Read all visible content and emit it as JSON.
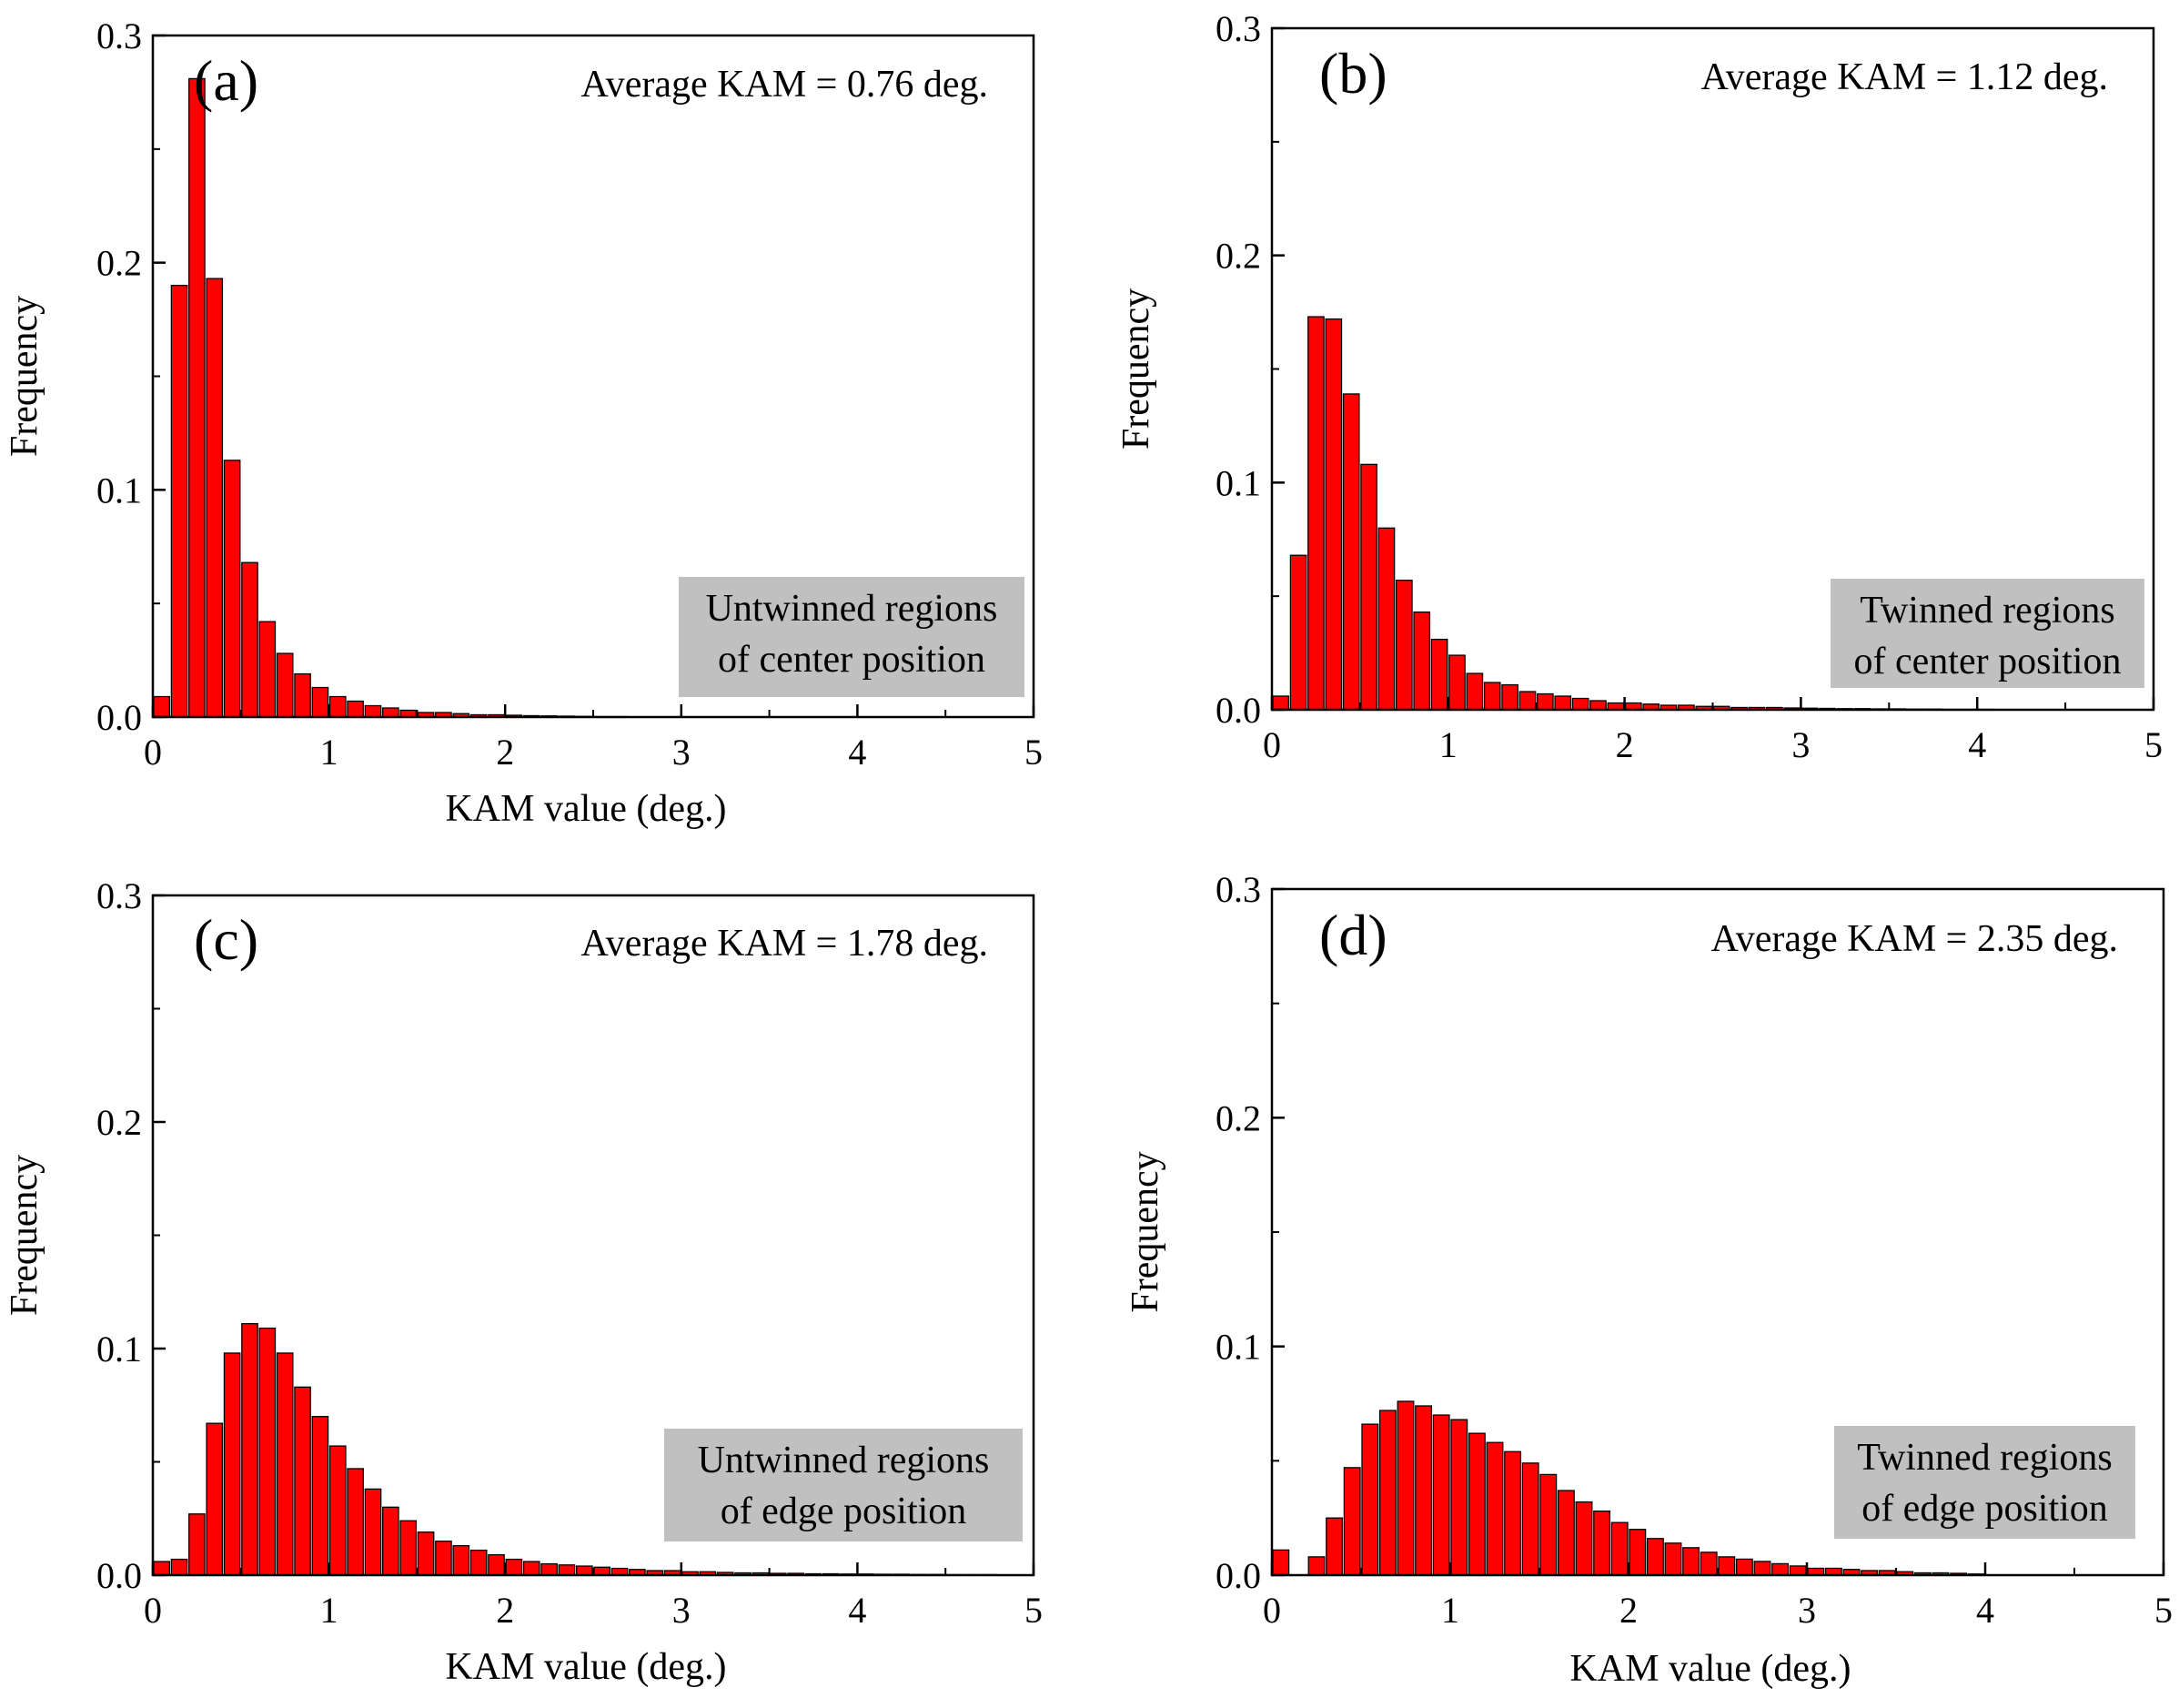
{
  "chart_data": [
    {
      "id": "a",
      "type": "bar",
      "panel_label": "(a)",
      "annotation": "Average KAM = 0.76 deg.",
      "legend_lines": [
        "Untwinned regions",
        "of center position"
      ],
      "xlabel": "KAM value (deg.)",
      "ylabel": "Frequency",
      "xlim": [
        0,
        5
      ],
      "ylim": [
        0,
        0.3
      ],
      "xticks": [
        0,
        1,
        2,
        3,
        4,
        5
      ],
      "yticks": [
        "0.0",
        "0.1",
        "0.2",
        "0.3"
      ],
      "bin_width": 0.1,
      "x": [
        0.05,
        0.15,
        0.25,
        0.35,
        0.45,
        0.55,
        0.65,
        0.75,
        0.85,
        0.95,
        1.05,
        1.15,
        1.25,
        1.35,
        1.45,
        1.55,
        1.65,
        1.75,
        1.85,
        1.95,
        2.05,
        2.15,
        2.25,
        2.35,
        2.45,
        2.55,
        2.65,
        2.75
      ],
      "values": [
        0.009,
        0.19,
        0.281,
        0.193,
        0.113,
        0.068,
        0.042,
        0.028,
        0.019,
        0.013,
        0.009,
        0.007,
        0.005,
        0.004,
        0.003,
        0.002,
        0.002,
        0.0015,
        0.001,
        0.001,
        0.0008,
        0.0006,
        0.0005,
        0.0004,
        0.0003,
        0.0002,
        0.0002,
        0.0001
      ]
    },
    {
      "id": "b",
      "type": "bar",
      "panel_label": "(b)",
      "annotation": "Average KAM = 1.12 deg.",
      "legend_lines": [
        "Twinned regions",
        "of center position"
      ],
      "xlabel": "",
      "ylabel": "Frequency",
      "xlim": [
        0,
        5
      ],
      "ylim": [
        0,
        0.3
      ],
      "xticks": [
        0,
        1,
        2,
        3,
        4,
        5
      ],
      "yticks": [
        "0.0",
        "0.1",
        "0.2",
        "0.3"
      ],
      "bin_width": 0.1,
      "x": [
        0.05,
        0.15,
        0.25,
        0.35,
        0.45,
        0.55,
        0.65,
        0.75,
        0.85,
        0.95,
        1.05,
        1.15,
        1.25,
        1.35,
        1.45,
        1.55,
        1.65,
        1.75,
        1.85,
        1.95,
        2.05,
        2.15,
        2.25,
        2.35,
        2.45,
        2.55,
        2.65,
        2.75,
        2.85,
        2.95,
        3.05,
        3.15,
        3.25,
        3.35,
        3.45,
        3.55,
        3.65,
        3.75,
        3.85,
        3.95,
        4.05,
        4.15,
        4.25
      ],
      "values": [
        0.006,
        0.068,
        0.173,
        0.172,
        0.139,
        0.108,
        0.08,
        0.057,
        0.043,
        0.031,
        0.024,
        0.016,
        0.012,
        0.011,
        0.008,
        0.007,
        0.006,
        0.005,
        0.004,
        0.003,
        0.003,
        0.0025,
        0.002,
        0.002,
        0.0015,
        0.0015,
        0.001,
        0.001,
        0.001,
        0.0008,
        0.0007,
        0.0006,
        0.0005,
        0.0005,
        0.0004,
        0.0004,
        0.0003,
        0.0003,
        0.0002,
        0.0002,
        0.0002,
        0.0001,
        0.0001
      ]
    },
    {
      "id": "c",
      "type": "bar",
      "panel_label": "(c)",
      "annotation": "Average KAM = 1.78 deg.",
      "legend_lines": [
        "Untwinned regions",
        "of edge position"
      ],
      "xlabel": "KAM value (deg.)",
      "ylabel": "Frequency",
      "xlim": [
        0,
        5
      ],
      "ylim": [
        0,
        0.3
      ],
      "xticks": [
        0,
        1,
        2,
        3,
        4,
        5
      ],
      "yticks": [
        "0.0",
        "0.1",
        "0.2",
        "0.3"
      ],
      "bin_width": 0.1,
      "x": [
        0.05,
        0.15,
        0.25,
        0.35,
        0.45,
        0.55,
        0.65,
        0.75,
        0.85,
        0.95,
        1.05,
        1.15,
        1.25,
        1.35,
        1.45,
        1.55,
        1.65,
        1.75,
        1.85,
        1.95,
        2.05,
        2.15,
        2.25,
        2.35,
        2.45,
        2.55,
        2.65,
        2.75,
        2.85,
        2.95,
        3.05,
        3.15,
        3.25,
        3.35,
        3.45,
        3.55,
        3.65,
        3.75,
        3.85,
        3.95,
        4.05,
        4.15,
        4.25,
        4.35,
        4.45,
        4.55,
        4.65,
        4.75,
        4.85,
        4.95
      ],
      "values": [
        0.006,
        0.007,
        0.027,
        0.067,
        0.098,
        0.111,
        0.109,
        0.098,
        0.083,
        0.07,
        0.057,
        0.047,
        0.038,
        0.03,
        0.024,
        0.019,
        0.015,
        0.013,
        0.011,
        0.009,
        0.007,
        0.006,
        0.005,
        0.0045,
        0.004,
        0.0035,
        0.003,
        0.0025,
        0.002,
        0.002,
        0.0015,
        0.0015,
        0.0012,
        0.001,
        0.001,
        0.0008,
        0.0008,
        0.0006,
        0.0006,
        0.0005,
        0.0005,
        0.0004,
        0.0004,
        0.0003,
        0.0003,
        0.0002,
        0.0002,
        0.0002,
        0.0001,
        0.0001
      ]
    },
    {
      "id": "d",
      "type": "bar",
      "panel_label": "(d)",
      "annotation": "Average KAM = 2.35 deg.",
      "legend_lines": [
        "Twinned regions",
        "of edge position"
      ],
      "xlabel": "KAM value (deg.)",
      "ylabel": "Frequency",
      "xlim": [
        0,
        5
      ],
      "ylim": [
        0,
        0.3
      ],
      "xticks": [
        0,
        1,
        2,
        3,
        4,
        5
      ],
      "yticks": [
        "0.0",
        "0.1",
        "0.2",
        "0.3"
      ],
      "bin_width": 0.1,
      "x": [
        0.05,
        0.15,
        0.25,
        0.35,
        0.45,
        0.55,
        0.65,
        0.75,
        0.85,
        0.95,
        1.05,
        1.15,
        1.25,
        1.35,
        1.45,
        1.55,
        1.65,
        1.75,
        1.85,
        1.95,
        2.05,
        2.15,
        2.25,
        2.35,
        2.45,
        2.55,
        2.65,
        2.75,
        2.85,
        2.95,
        3.05,
        3.15,
        3.25,
        3.35,
        3.45,
        3.55,
        3.65,
        3.75,
        3.85,
        3.95
      ],
      "values": [
        0.011,
        0.0,
        0.008,
        0.025,
        0.047,
        0.066,
        0.072,
        0.076,
        0.074,
        0.07,
        0.068,
        0.062,
        0.058,
        0.054,
        0.049,
        0.044,
        0.037,
        0.032,
        0.028,
        0.023,
        0.02,
        0.016,
        0.014,
        0.012,
        0.01,
        0.008,
        0.007,
        0.006,
        0.005,
        0.004,
        0.003,
        0.003,
        0.0025,
        0.002,
        0.002,
        0.0015,
        0.001,
        0.001,
        0.0008,
        0.0005
      ]
    }
  ]
}
